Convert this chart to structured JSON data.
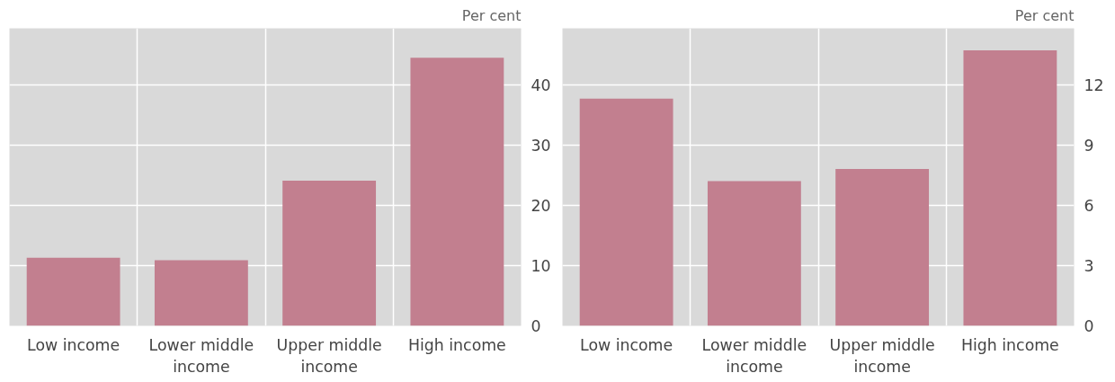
{
  "chart_data": [
    {
      "type": "bar",
      "ylabel": "Per cent",
      "categories": [
        "Low income",
        "Lower middle income",
        "Upper middle income",
        "High income"
      ],
      "values": [
        11.3,
        10.9,
        24.1,
        44.5
      ],
      "color": "#c27f8f",
      "ylim": [
        0,
        49.4
      ],
      "yticks": [
        0,
        10,
        20,
        30,
        40
      ],
      "grid": true
    },
    {
      "type": "bar",
      "ylabel": "Per cent",
      "categories": [
        "Low income",
        "Lower middle income",
        "Upper middle income",
        "High income"
      ],
      "values": [
        11.3,
        7.2,
        7.8,
        13.7
      ],
      "color": "#c27f8f",
      "ylim": [
        0,
        14.8
      ],
      "yticks": [
        0,
        3,
        6,
        9,
        12
      ],
      "grid": true
    }
  ]
}
